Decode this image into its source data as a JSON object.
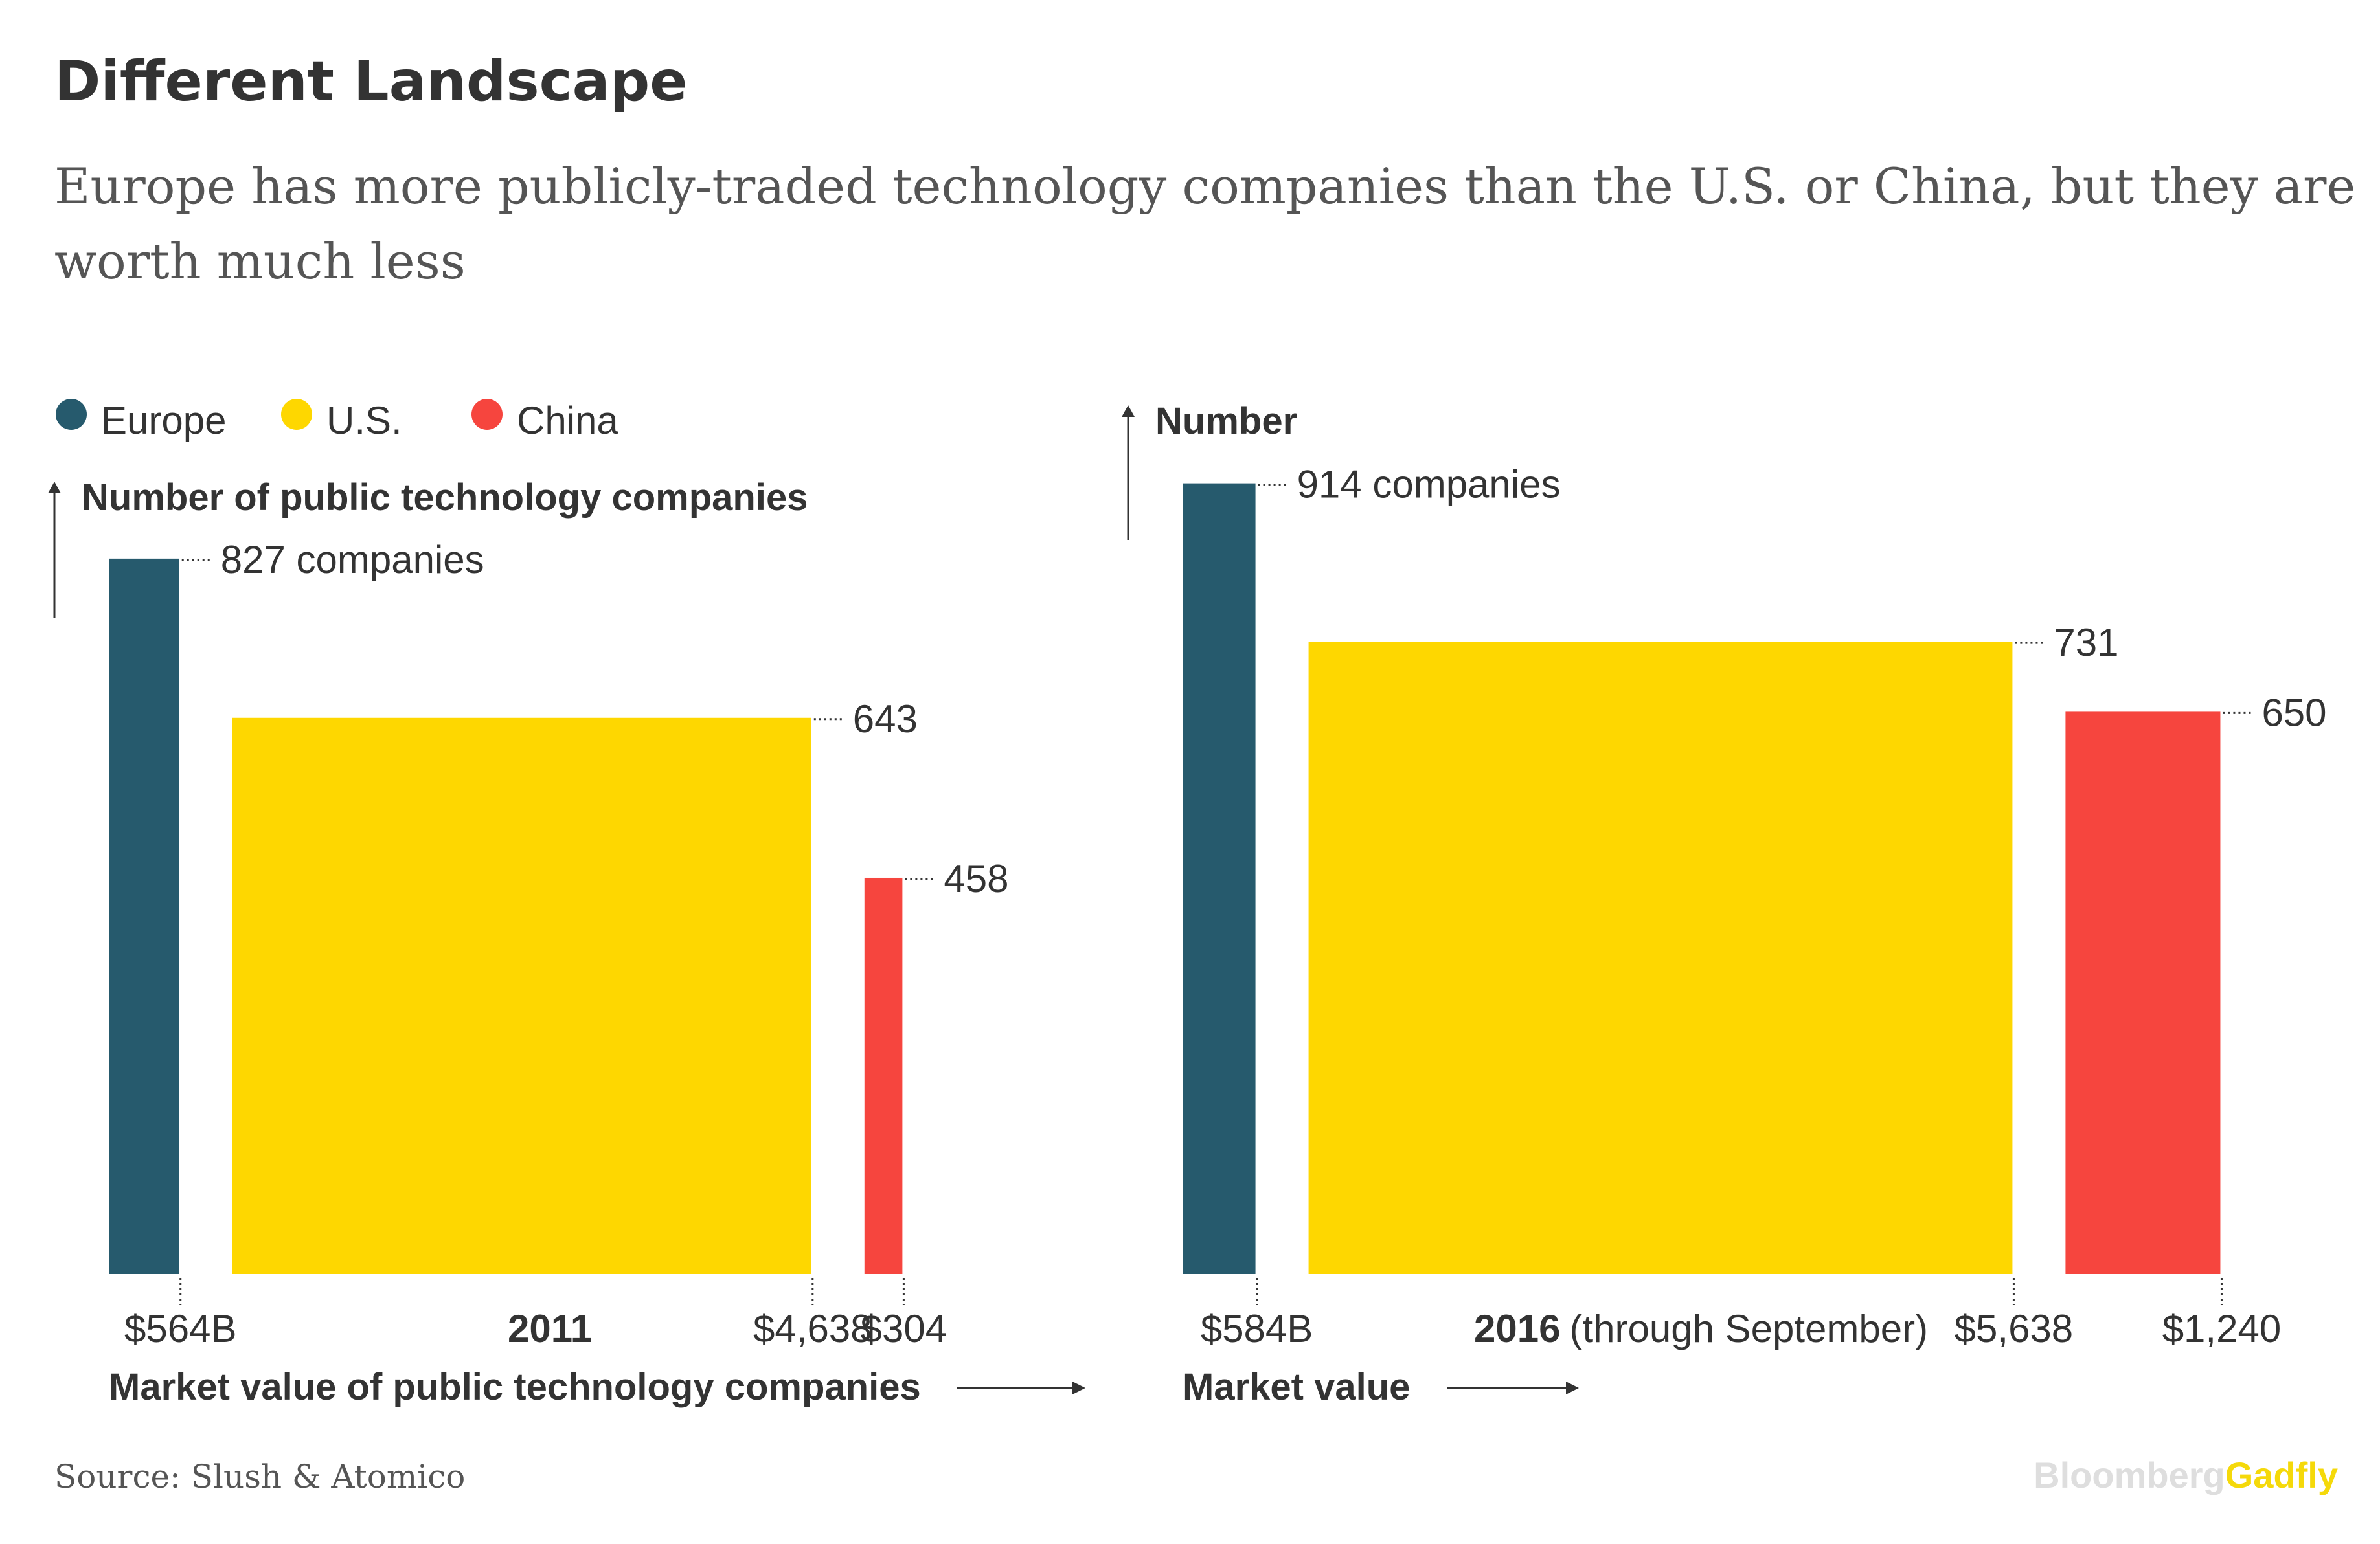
{
  "title": "Different Landscape",
  "subtitle_line1": "Europe has more publicly-traded technology companies than the U.S. or China, but they are",
  "subtitle_line2": "worth much less",
  "source": "Source: Slush & Atomico",
  "logo": {
    "part1": "Bloomberg",
    "part2": "Gadfly"
  },
  "colors": {
    "Europe": "#265a6d",
    "U.S.": "#fed700",
    "China": "#f6453e"
  },
  "chart_data": [
    {
      "type": "bar",
      "panel": "left",
      "year": "2011",
      "year_note": "",
      "ylabel": "Number of public technology companies",
      "xlabel": "Market value of public technology companies",
      "legend": [
        "Europe",
        "U.S.",
        "China"
      ],
      "series": [
        {
          "name": "Europe",
          "count": 827,
          "market_value": 564,
          "count_label": "827 companies",
          "value_label": "$564B"
        },
        {
          "name": "U.S.",
          "count": 643,
          "market_value": 4638,
          "count_label": "643",
          "value_label": "$4,638"
        },
        {
          "name": "China",
          "count": 458,
          "market_value": 304,
          "count_label": "458",
          "value_label": "$304"
        }
      ]
    },
    {
      "type": "bar",
      "panel": "right",
      "year": "2016",
      "year_note": "(through September)",
      "ylabel": "Number",
      "xlabel": "Market value",
      "series": [
        {
          "name": "Europe",
          "count": 914,
          "market_value": 584,
          "count_label": "914 companies",
          "value_label": "$584B"
        },
        {
          "name": "U.S.",
          "count": 731,
          "market_value": 5638,
          "count_label": "731",
          "value_label": "$5,638"
        },
        {
          "name": "China",
          "count": 650,
          "market_value": 1240,
          "count_label": "650",
          "value_label": "$1,240"
        }
      ]
    }
  ]
}
